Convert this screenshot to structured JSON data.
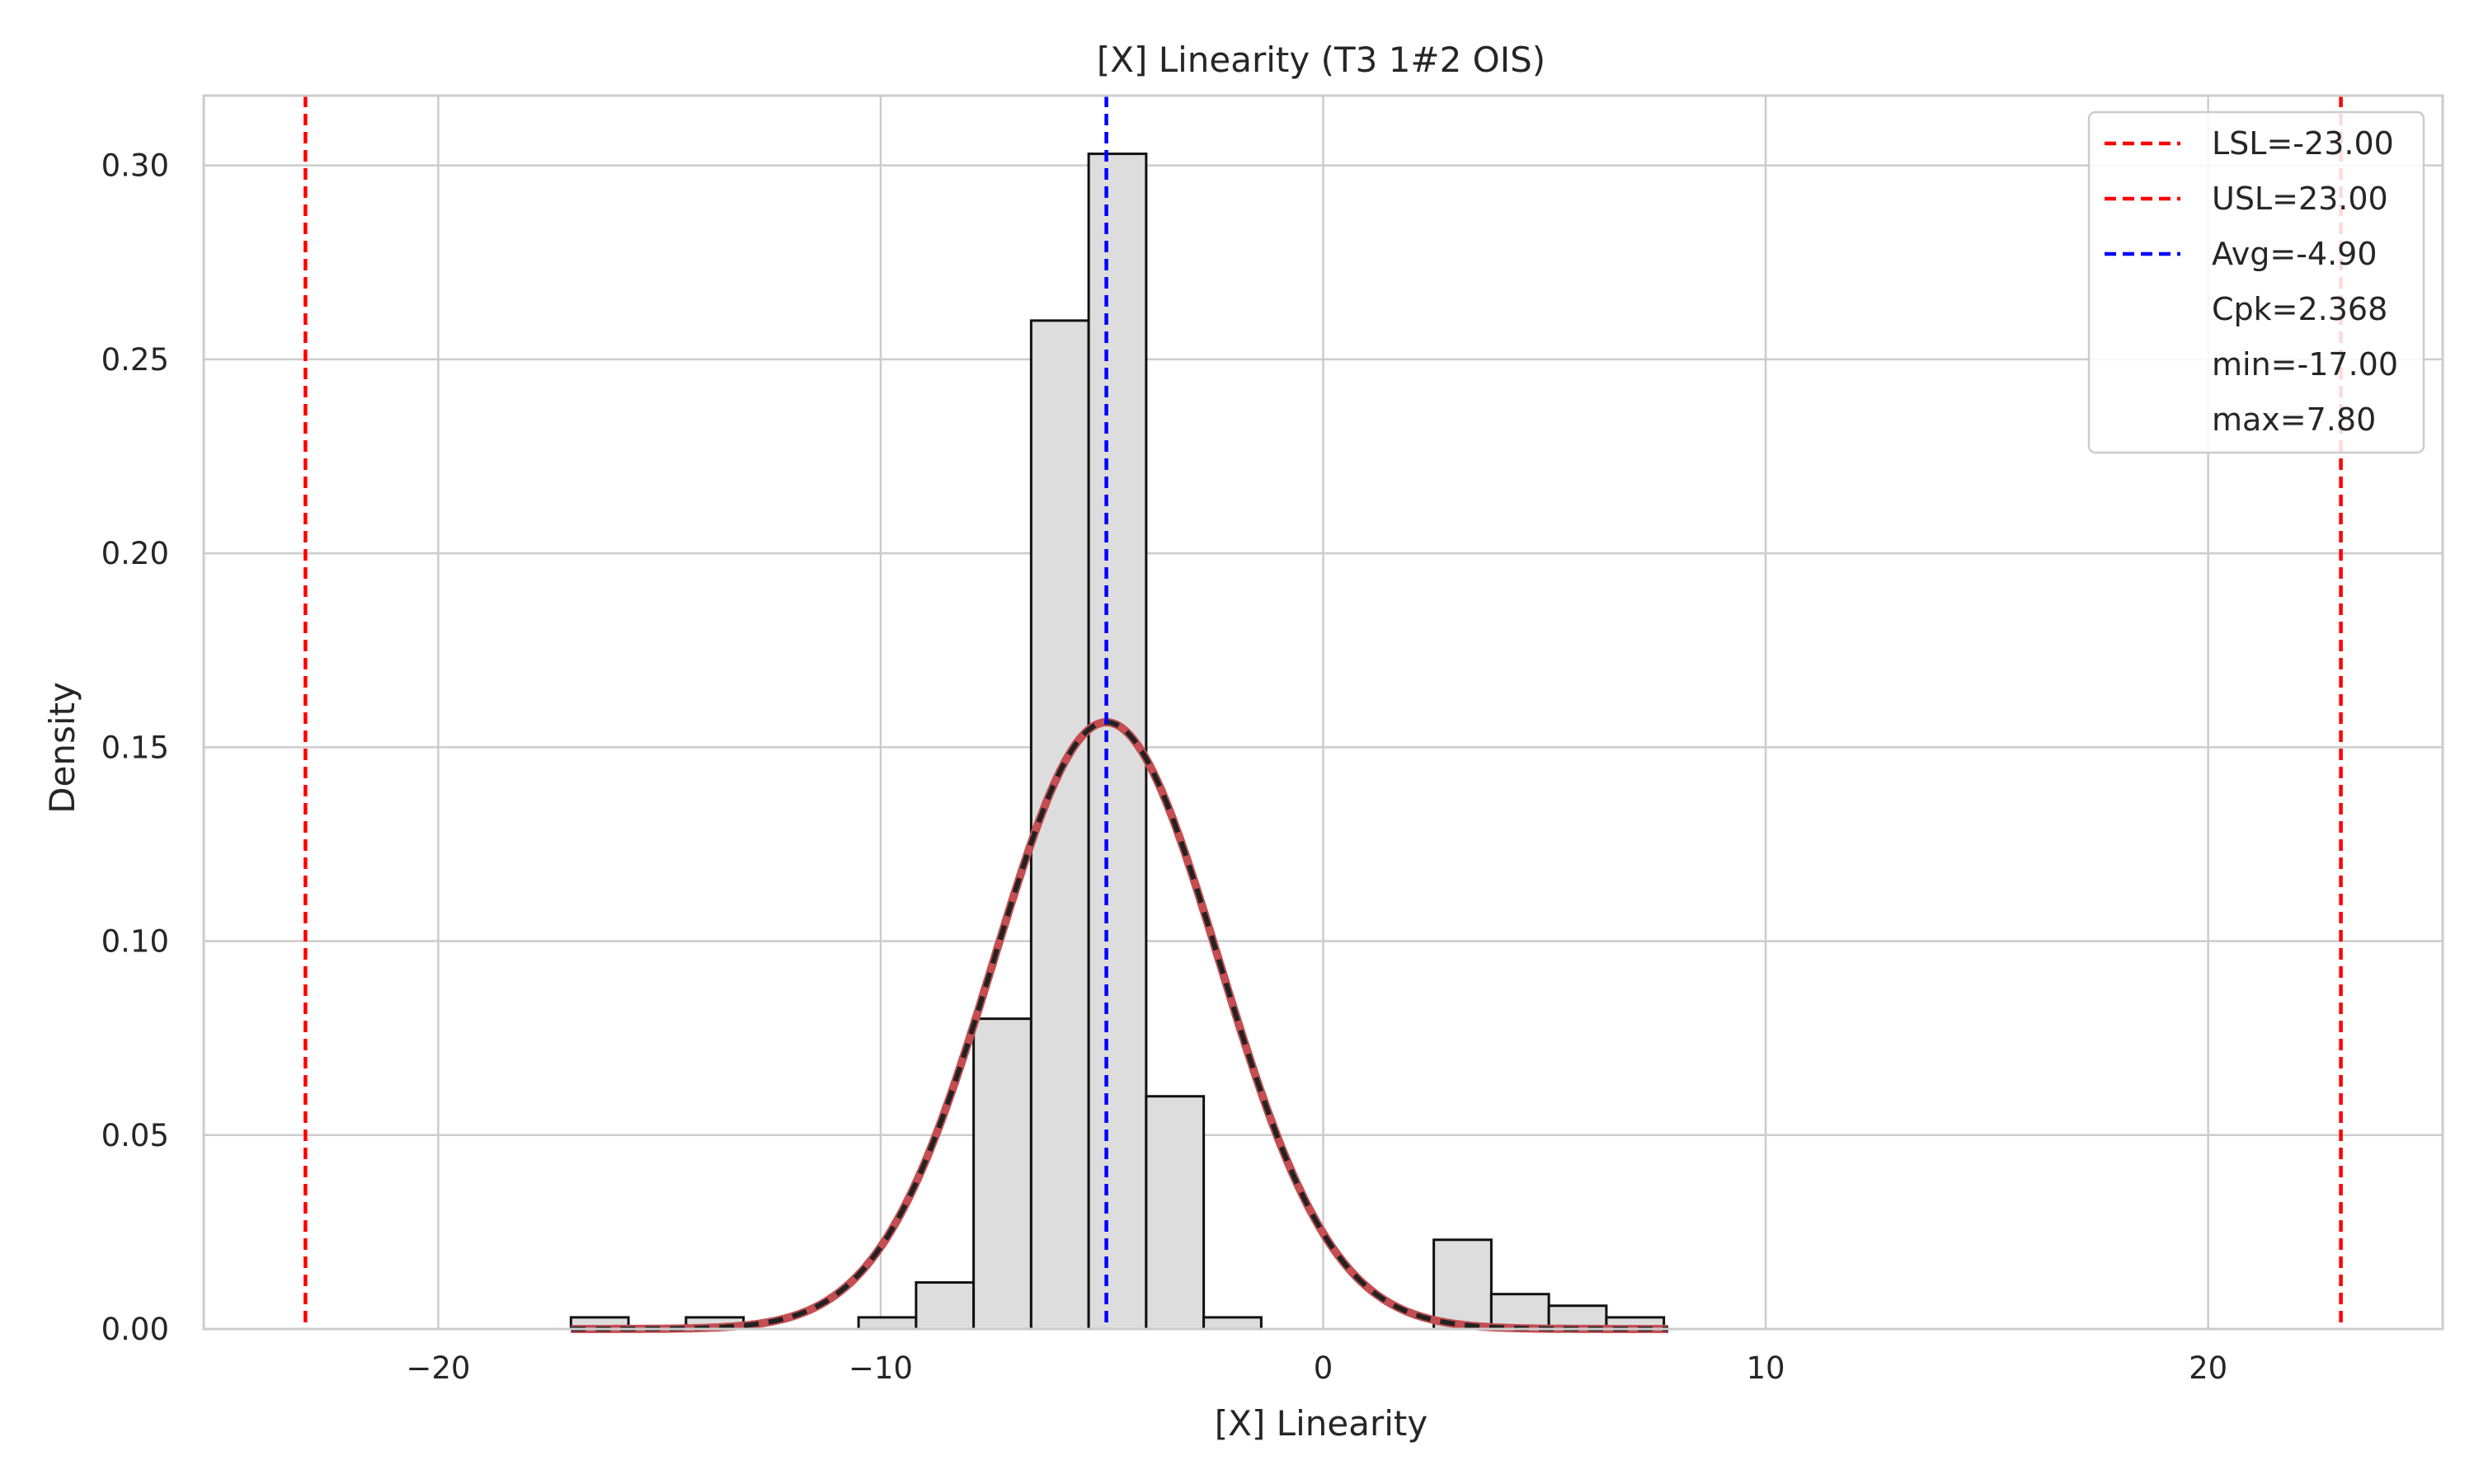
{
  "chart_data": {
    "type": "bar",
    "title": "[X] Linearity (T3 1#2 OIS)",
    "xlabel": "[X] Linearity",
    "ylabel": "Density",
    "xlim": [
      -25.3,
      25.3
    ],
    "ylim": [
      0,
      0.318
    ],
    "grid": true,
    "legend_position": "top-right",
    "x_ticks": [
      -20,
      -10,
      0,
      10,
      20
    ],
    "x_tick_labels": [
      "−20",
      "−10",
      "0",
      "10",
      "20"
    ],
    "y_ticks": [
      0.0,
      0.05,
      0.1,
      0.15,
      0.2,
      0.25,
      0.3
    ],
    "y_tick_labels": [
      "0.00",
      "0.05",
      "0.10",
      "0.15",
      "0.20",
      "0.25",
      "0.30"
    ],
    "histogram": {
      "bin_width": 1.3,
      "bin_starts": [
        -17.0,
        -15.7,
        -14.4,
        -13.1,
        -11.8,
        -10.5,
        -9.2,
        -7.9,
        -6.6,
        -5.3,
        -4.0,
        -2.7,
        -1.4,
        -0.1,
        1.2,
        2.5,
        3.8,
        5.1,
        6.4
      ],
      "densities": [
        0.003,
        0.0,
        0.003,
        0.0,
        0.0,
        0.003,
        0.012,
        0.08,
        0.26,
        0.303,
        0.06,
        0.003,
        0.0,
        0.0,
        0.0,
        0.023,
        0.009,
        0.006,
        0.003
      ],
      "fill": "#dddddd",
      "edge": "#111111"
    },
    "normal_fit": {
      "mean": -4.9,
      "std": 2.55,
      "color": "#c44e52",
      "dash_color": "#222222"
    },
    "reference_lines": [
      {
        "name": "LSL",
        "x": -23.0,
        "color": "#ff0000"
      },
      {
        "name": "USL",
        "x": 23.0,
        "color": "#ff0000"
      },
      {
        "name": "Avg",
        "x": -4.9,
        "color": "#0000ff"
      }
    ],
    "legend": [
      {
        "label": "LSL=-23.00",
        "color": "#ff0000",
        "marker": "dashed-line"
      },
      {
        "label": "USL=23.00",
        "color": "#ff0000",
        "marker": "dashed-line"
      },
      {
        "label": "Avg=-4.90",
        "color": "#0000ff",
        "marker": "dashed-line"
      },
      {
        "label": "Cpk=2.368",
        "color": "",
        "marker": "none"
      },
      {
        "label": "min=-17.00",
        "color": "",
        "marker": "none"
      },
      {
        "label": "max=7.80",
        "color": "",
        "marker": "none"
      }
    ]
  }
}
